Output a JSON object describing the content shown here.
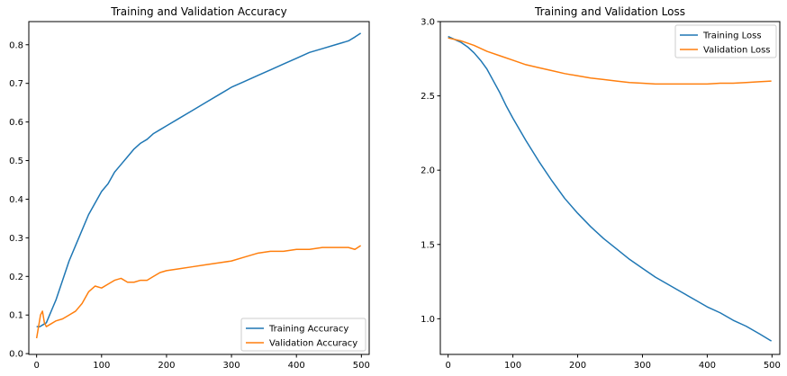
{
  "chart_data": [
    {
      "type": "line",
      "title": "Training and Validation Accuracy",
      "xlabel": "",
      "ylabel": "",
      "xlim": [
        -12,
        512
      ],
      "ylim": [
        -0.002,
        0.86
      ],
      "xticks": [
        0,
        100,
        200,
        300,
        400,
        500
      ],
      "yticks": [
        0.0,
        0.1,
        0.2,
        0.3,
        0.4,
        0.5,
        0.6,
        0.7,
        0.8
      ],
      "grid": false,
      "legend_position": "lower-right",
      "series": [
        {
          "name": "Training Accuracy",
          "color": "#1f77b4",
          "x": [
            0,
            5,
            10,
            15,
            20,
            25,
            30,
            40,
            50,
            60,
            70,
            80,
            90,
            100,
            110,
            120,
            130,
            140,
            150,
            160,
            170,
            180,
            190,
            200,
            220,
            240,
            260,
            280,
            300,
            320,
            340,
            360,
            380,
            400,
            420,
            440,
            460,
            480,
            490,
            499
          ],
          "y": [
            0.07,
            0.07,
            0.075,
            0.08,
            0.1,
            0.12,
            0.14,
            0.19,
            0.24,
            0.28,
            0.32,
            0.36,
            0.39,
            0.42,
            0.44,
            0.47,
            0.49,
            0.51,
            0.53,
            0.545,
            0.555,
            0.57,
            0.58,
            0.59,
            0.61,
            0.63,
            0.65,
            0.67,
            0.69,
            0.705,
            0.72,
            0.735,
            0.75,
            0.765,
            0.78,
            0.79,
            0.8,
            0.81,
            0.82,
            0.83
          ]
        },
        {
          "name": "Validation Accuracy",
          "color": "#ff7f0e",
          "x": [
            0,
            3,
            6,
            9,
            12,
            15,
            20,
            30,
            40,
            50,
            60,
            70,
            80,
            90,
            100,
            110,
            120,
            130,
            140,
            150,
            160,
            170,
            180,
            190,
            200,
            220,
            240,
            260,
            280,
            300,
            320,
            340,
            360,
            380,
            400,
            420,
            440,
            460,
            480,
            490,
            499
          ],
          "y": [
            0.04,
            0.07,
            0.1,
            0.11,
            0.08,
            0.07,
            0.075,
            0.085,
            0.09,
            0.1,
            0.11,
            0.13,
            0.16,
            0.175,
            0.17,
            0.18,
            0.19,
            0.195,
            0.185,
            0.185,
            0.19,
            0.19,
            0.2,
            0.21,
            0.215,
            0.22,
            0.225,
            0.23,
            0.235,
            0.24,
            0.25,
            0.26,
            0.265,
            0.265,
            0.27,
            0.27,
            0.275,
            0.275,
            0.275,
            0.27,
            0.28
          ]
        }
      ]
    },
    {
      "type": "line",
      "title": "Training and Validation Loss",
      "xlabel": "",
      "ylabel": "",
      "xlim": [
        -12,
        512
      ],
      "ylim": [
        0.76,
        3.0
      ],
      "xticks": [
        0,
        100,
        200,
        300,
        400,
        500
      ],
      "yticks": [
        1.0,
        1.5,
        2.0,
        2.5,
        3.0
      ],
      "grid": false,
      "legend_position": "upper-right",
      "series": [
        {
          "name": "Training Loss",
          "color": "#1f77b4",
          "x": [
            0,
            10,
            20,
            30,
            40,
            50,
            60,
            70,
            80,
            90,
            100,
            120,
            140,
            160,
            180,
            200,
            220,
            240,
            260,
            280,
            300,
            320,
            340,
            360,
            380,
            400,
            420,
            440,
            460,
            480,
            499
          ],
          "y": [
            2.9,
            2.88,
            2.86,
            2.83,
            2.79,
            2.74,
            2.68,
            2.6,
            2.52,
            2.43,
            2.35,
            2.2,
            2.06,
            1.93,
            1.81,
            1.71,
            1.62,
            1.54,
            1.47,
            1.4,
            1.34,
            1.28,
            1.23,
            1.18,
            1.13,
            1.08,
            1.04,
            0.99,
            0.95,
            0.9,
            0.85
          ]
        },
        {
          "name": "Validation Loss",
          "color": "#ff7f0e",
          "x": [
            0,
            20,
            40,
            60,
            80,
            100,
            120,
            140,
            160,
            180,
            200,
            220,
            240,
            260,
            280,
            300,
            320,
            340,
            360,
            380,
            400,
            420,
            440,
            460,
            480,
            499
          ],
          "y": [
            2.89,
            2.87,
            2.84,
            2.8,
            2.77,
            2.74,
            2.71,
            2.69,
            2.67,
            2.65,
            2.635,
            2.62,
            2.61,
            2.6,
            2.59,
            2.585,
            2.58,
            2.58,
            2.58,
            2.58,
            2.58,
            2.585,
            2.585,
            2.59,
            2.595,
            2.6
          ]
        }
      ]
    }
  ]
}
